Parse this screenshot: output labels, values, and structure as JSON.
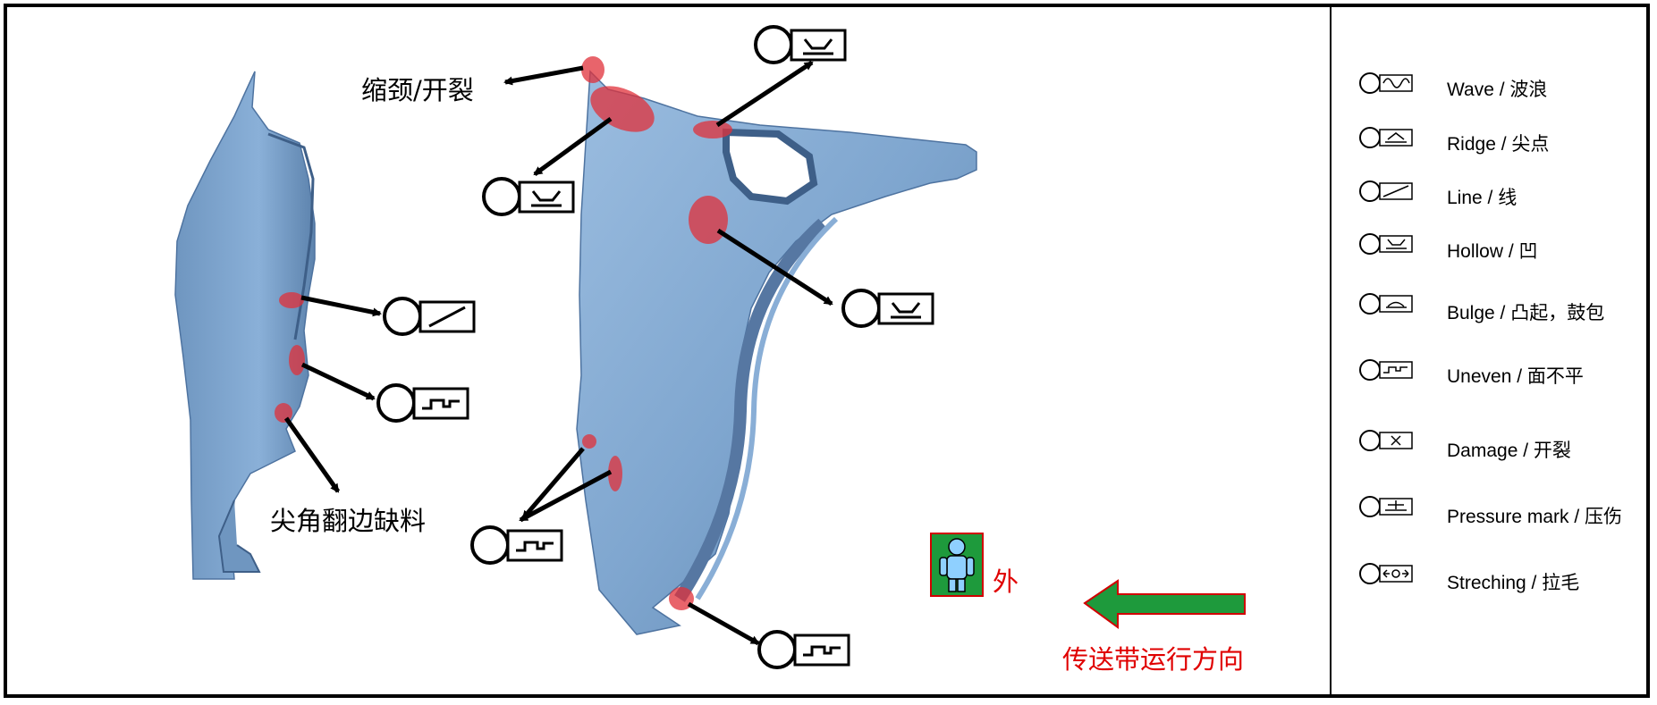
{
  "labels": {
    "necking_crack": "缩颈/开裂",
    "corner_flange_missing": "尖角翻边缺料",
    "outside": "外",
    "conveyor_direction": "传送带运行方向"
  },
  "legend": [
    {
      "icon": "wave-icon",
      "text": "Wave / 波浪"
    },
    {
      "icon": "ridge-icon",
      "text": "Ridge / 尖点"
    },
    {
      "icon": "line-icon",
      "text": "Line / 线"
    },
    {
      "icon": "hollow-icon",
      "text": "Hollow / 凹"
    },
    {
      "icon": "bulge-icon",
      "text": "Bulge /  凸起，鼓包"
    },
    {
      "icon": "uneven-icon",
      "text": "Uneven / 面不平"
    },
    {
      "icon": "damage-icon",
      "text": "Damage / 开裂"
    },
    {
      "icon": "pressure-mark-icon",
      "text": "Pressure mark / 压伤"
    },
    {
      "icon": "streching-icon",
      "text": "Streching / 拉毛"
    }
  ],
  "colors": {
    "panel": "#7fa6cf",
    "defect_marker": "#e0303a",
    "arrow_green": "#1e9a3c",
    "arrow_border": "#d00000",
    "text_red": "#e00000"
  }
}
